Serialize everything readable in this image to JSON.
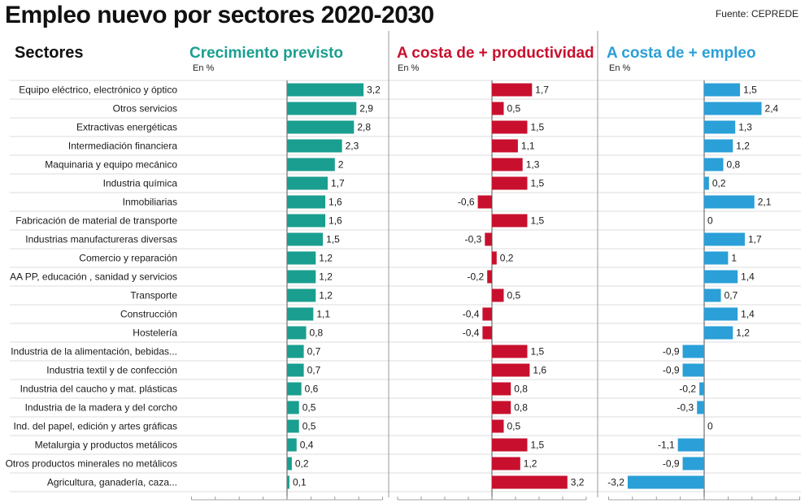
{
  "title": "Empleo nuevo por sectores 2020-2030",
  "source": "Fuente: CEPREDE",
  "sectors_header": "Sectores",
  "colors": {
    "crecimiento": "#1a9e8f",
    "productividad": "#c8102e",
    "empleo": "#2a9fd8",
    "divider": "#999999",
    "rowline": "#d0d0d0"
  },
  "chart_data": {
    "type": "bar",
    "orientation": "horizontal",
    "categories": [
      "Equipo eléctrico, electrónico y óptico",
      "Otros servicios",
      "Extractivas energéticas",
      "Intermediación financiera",
      "Maquinaria y equipo mecánico",
      "Industria química",
      "Inmobiliarias",
      "Fabricación de material de transporte",
      "Industrias manufactureras diversas",
      "Comercio y reparación",
      "AA PP, educación , sanidad y servicios",
      "Transporte",
      "Construcción",
      "Hostelería",
      "Industria de la alimentación, bebidas...",
      "Industria textil y de confección",
      "Industria del caucho y mat. plásticas",
      "Industria de la madera y del corcho",
      "Ind. del papel, edición y artes gráficas",
      "Metalurgia y productos metálicos",
      "Otros productos minerales no metálicos",
      "Agricultura, ganadería, caza..."
    ],
    "xlim": [
      -4,
      4
    ],
    "ticks": [
      "-4",
      "-3",
      "-2",
      "-1",
      "0",
      "1",
      "2",
      "3",
      "4"
    ],
    "series": [
      {
        "key": "crecimiento",
        "name": "Crecimiento previsto",
        "unit": "En %",
        "values": [
          3.2,
          2.9,
          2.8,
          2.3,
          2,
          1.7,
          1.6,
          1.6,
          1.5,
          1.2,
          1.2,
          1.2,
          1.1,
          0.8,
          0.7,
          0.7,
          0.6,
          0.5,
          0.5,
          0.4,
          0.2,
          0.1
        ],
        "labels": [
          "3,2",
          "2,9",
          "2,8",
          "2,3",
          "2",
          "1,7",
          "1,6",
          "1,6",
          "1,5",
          "1,2",
          "1,2",
          "1,2",
          "1,1",
          "0,8",
          "0,7",
          "0,7",
          "0,6",
          "0,5",
          "0,5",
          "0,4",
          "0,2",
          "0,1"
        ]
      },
      {
        "key": "productividad",
        "name": "A costa de + productividad",
        "unit": "En %",
        "values": [
          1.7,
          0.5,
          1.5,
          1.1,
          1.3,
          1.5,
          -0.6,
          1.5,
          -0.3,
          0.2,
          -0.2,
          0.5,
          -0.4,
          -0.4,
          1.5,
          1.6,
          0.8,
          0.8,
          0.5,
          1.5,
          1.2,
          3.2
        ],
        "labels": [
          "1,7",
          "0,5",
          "1,5",
          "1,1",
          "1,3",
          "1,5",
          "-0,6",
          "1,5",
          "-0,3",
          "0,2",
          "-0,2",
          "0,5",
          "-0,4",
          "-0,4",
          "1,5",
          "1,6",
          "0,8",
          "0,8",
          "0,5",
          "1,5",
          "1,2",
          "3,2"
        ]
      },
      {
        "key": "empleo",
        "name": "A costa de + empleo",
        "unit": "En %",
        "values": [
          1.5,
          2.4,
          1.3,
          1.2,
          0.8,
          0.2,
          2.1,
          0,
          1.7,
          1,
          1.4,
          0.7,
          1.4,
          1.2,
          -0.9,
          -0.9,
          -0.2,
          -0.3,
          0,
          -1.1,
          -0.9,
          -3.2
        ],
        "labels": [
          "1,5",
          "2,4",
          "1,3",
          "1,2",
          "0,8",
          "0,2",
          "2,1",
          "0",
          "1,7",
          "1",
          "1,4",
          "0,7",
          "1,4",
          "1,2",
          "-0,9",
          "-0,9",
          "-0,2",
          "-0,3",
          "0",
          "-1,1",
          "-0,9",
          "-3,2"
        ]
      }
    ]
  }
}
